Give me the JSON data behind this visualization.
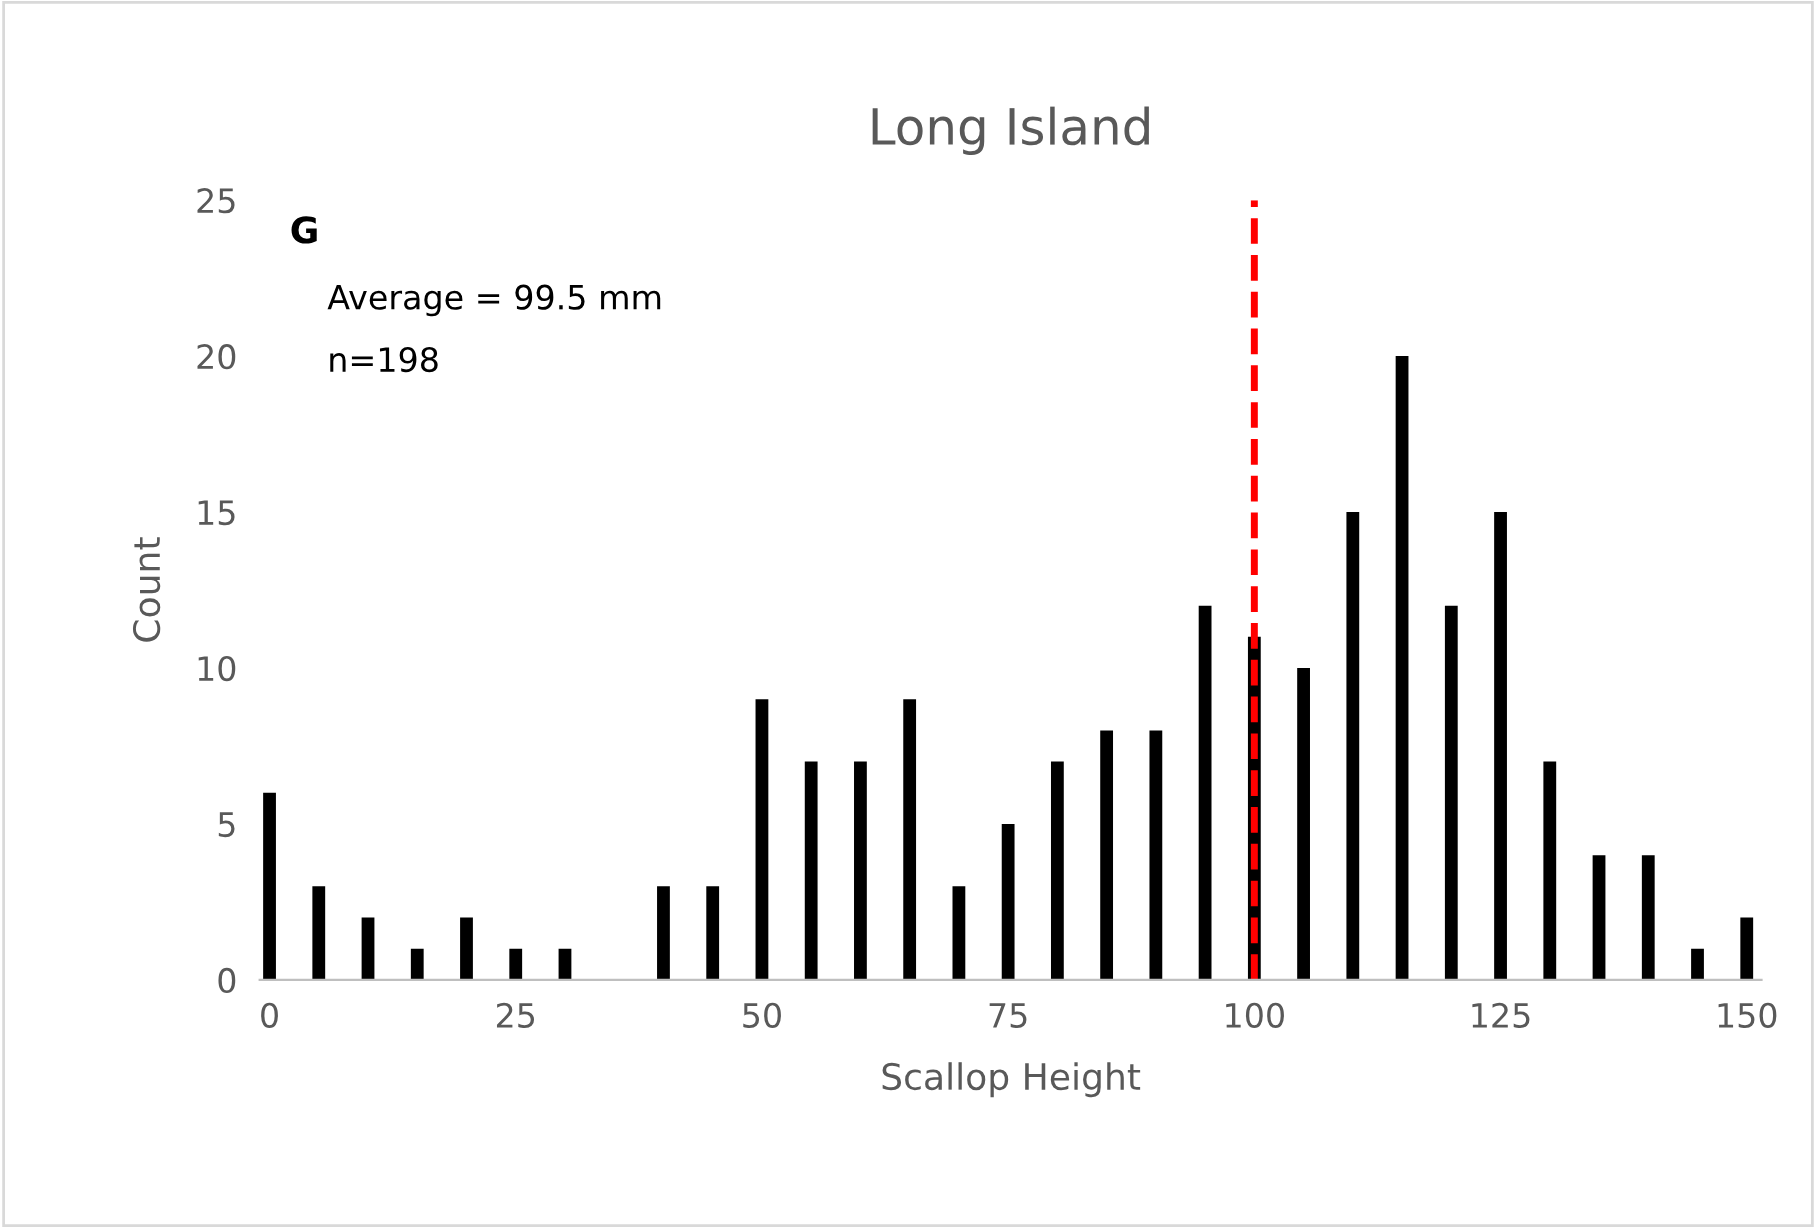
{
  "chart_data": {
    "type": "bar",
    "title": "Long Island",
    "xlabel": "Scallop Height",
    "ylabel": "Count",
    "x": [
      0,
      5,
      10,
      15,
      20,
      25,
      30,
      35,
      40,
      45,
      50,
      55,
      60,
      65,
      70,
      75,
      80,
      85,
      90,
      95,
      100,
      105,
      110,
      115,
      120,
      125,
      130,
      135,
      140,
      145,
      150
    ],
    "values": [
      6,
      3,
      2,
      1,
      2,
      1,
      1,
      0,
      3,
      3,
      9,
      7,
      7,
      9,
      3,
      5,
      7,
      8,
      8,
      12,
      11,
      10,
      15,
      20,
      12,
      15,
      7,
      4,
      4,
      1,
      2
    ],
    "color": "#000000",
    "xlim": [
      -1,
      151.5
    ],
    "xticks": [
      0,
      25,
      50,
      75,
      100,
      125,
      150
    ],
    "ylim": [
      0,
      25
    ],
    "yticks": [
      0,
      5,
      10,
      15,
      20,
      25
    ],
    "grid": false,
    "legend": false,
    "ref_lines": [
      {
        "axis": "x",
        "value": 100,
        "color": "#ff0000",
        "line_style": "dashed"
      }
    ],
    "annotations": [
      "G",
      "Average = 99.5 mm",
      "n=198"
    ]
  }
}
